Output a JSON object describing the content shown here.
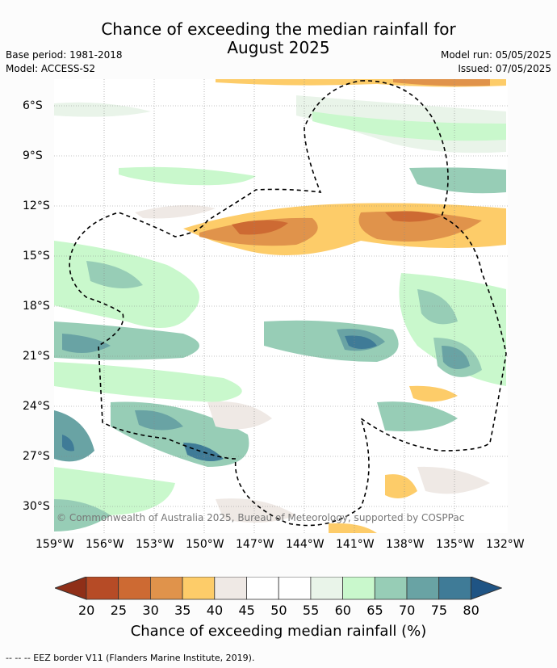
{
  "title": {
    "line1": "Chance of exceeding the median rainfall for",
    "line2": "August 2025"
  },
  "meta": {
    "base_period": "Base period: 1981-2018",
    "model": "Model: ACCESS-S2",
    "model_run": "Model run: 05/05/2025",
    "issued": "Issued: 07/05/2025"
  },
  "map": {
    "lat_ticks": [
      "6°S",
      "9°S",
      "12°S",
      "15°S",
      "18°S",
      "21°S",
      "24°S",
      "27°S",
      "30°S"
    ],
    "lon_ticks": [
      "159°W",
      "156°W",
      "153°W",
      "150°W",
      "147°W",
      "144°W",
      "141°W",
      "138°W",
      "135°W",
      "132°W"
    ],
    "copyright": "© Commonwealth of Australia 2025, Bureau of Meteorology, supported by COSPPac",
    "eez_style": "dashed black"
  },
  "colorbar": {
    "labels": [
      "20",
      "25",
      "30",
      "35",
      "40",
      "45",
      "50",
      "55",
      "60",
      "65",
      "70",
      "75",
      "80"
    ],
    "colors": [
      "#b64b26",
      "#cd6a33",
      "#e0934b",
      "#fdcc69",
      "#efe9e5",
      "#ffffff",
      "#ffffff",
      "#e9f4e9",
      "#c9f8cc",
      "#97cdb6",
      "#69a3a4",
      "#3f7b97"
    ],
    "low_extend_color": "#8f2f18",
    "high_extend_color": "#1f5484",
    "title": "Chance of exceeding median rainfall (%)"
  },
  "footer": "--  --  -- EEZ border V11 (Flanders Marine Institute, 2019)."
}
